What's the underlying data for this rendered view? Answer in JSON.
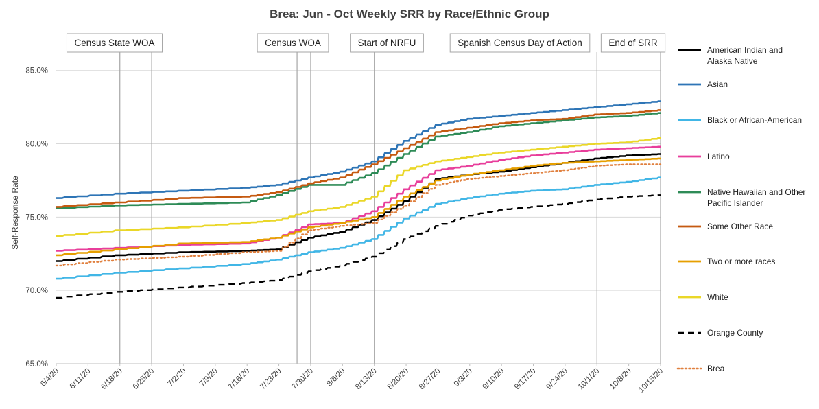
{
  "chart_data": {
    "type": "line",
    "title": "Brea: Jun - Oct Weekly SRR by Race/Ethnic Group",
    "xlabel": "",
    "ylabel": "Self-Response Rate",
    "ylim": [
      65,
      87
    ],
    "yticks": [
      "65.0%",
      "70.0%",
      "75.0%",
      "80.0%",
      "85.0%"
    ],
    "ytick_values": [
      65,
      70,
      75,
      80,
      85
    ],
    "x_start": "2020-06-04",
    "x_end": "2020-10-15",
    "x_ticks": [
      "6/4/20",
      "6/11/20",
      "6/18/20",
      "6/25/20",
      "7/2/20",
      "7/9/20",
      "7/16/20",
      "7/23/20",
      "7/30/20",
      "8/6/20",
      "8/13/20",
      "8/20/20",
      "8/27/20",
      "9/3/20",
      "9/10/20",
      "9/17/20",
      "9/24/20",
      "10/1/20",
      "10/8/20",
      "10/15/20"
    ],
    "events": [
      {
        "label": "Census State WOA",
        "start": "6/18/20",
        "end": "6/25/20"
      },
      {
        "label": "Census WOA",
        "start": "7/27/20",
        "end": "7/30/20"
      },
      {
        "label": "Start of NRFU",
        "start": "8/13/20",
        "end": "8/13/20"
      },
      {
        "label": "Spanish Census Day of Action",
        "start": "10/1/20",
        "end": "10/1/20"
      },
      {
        "label": "End of SRR",
        "start": "10/15/20",
        "end": "10/15/20"
      }
    ],
    "key_dates": [
      "6/4/20",
      "6/18/20",
      "7/2/20",
      "7/16/20",
      "7/23/20",
      "7/30/20",
      "8/6/20",
      "8/13/20",
      "8/20/20",
      "8/27/20",
      "9/3/20",
      "9/10/20",
      "9/17/20",
      "9/24/20",
      "10/1/20",
      "10/8/20",
      "10/15/20"
    ],
    "series": [
      {
        "name": "American Indian and Alaska Native",
        "color": "#000000",
        "dash": "solid",
        "values": [
          72.0,
          72.4,
          72.6,
          72.7,
          72.8,
          73.6,
          74.0,
          74.8,
          76.1,
          77.6,
          77.9,
          78.1,
          78.4,
          78.7,
          79.0,
          79.2,
          79.3
        ]
      },
      {
        "name": "Asian",
        "color": "#2e75b6",
        "dash": "solid",
        "values": [
          76.3,
          76.6,
          76.8,
          77.0,
          77.2,
          77.7,
          78.1,
          78.8,
          80.2,
          81.3,
          81.7,
          81.9,
          82.1,
          82.3,
          82.5,
          82.7,
          82.9
        ]
      },
      {
        "name": "Black or African-American",
        "color": "#41b6e6",
        "dash": "solid",
        "values": [
          70.8,
          71.2,
          71.5,
          71.8,
          72.1,
          72.6,
          72.9,
          73.5,
          74.9,
          75.9,
          76.3,
          76.6,
          76.8,
          76.9,
          77.2,
          77.4,
          77.7
        ]
      },
      {
        "name": "Latino",
        "color": "#e83e9b",
        "dash": "solid",
        "values": [
          72.7,
          72.9,
          73.1,
          73.2,
          73.6,
          74.5,
          74.6,
          75.4,
          76.9,
          78.2,
          78.5,
          78.9,
          79.2,
          79.4,
          79.6,
          79.7,
          79.8
        ]
      },
      {
        "name": "Native Hawaiian and Other Pacific Islander",
        "color": "#2e8b57",
        "dash": "solid",
        "values": [
          75.6,
          75.8,
          75.9,
          76.0,
          76.5,
          77.2,
          77.2,
          78.0,
          79.3,
          80.5,
          80.8,
          81.2,
          81.4,
          81.6,
          81.8,
          81.9,
          82.1
        ]
      },
      {
        "name": "Some Other Race",
        "color": "#c55a11",
        "dash": "solid",
        "values": [
          75.7,
          76.0,
          76.3,
          76.4,
          76.7,
          77.3,
          77.7,
          78.6,
          79.7,
          80.8,
          81.1,
          81.4,
          81.6,
          81.7,
          82.0,
          82.1,
          82.3
        ]
      },
      {
        "name": "Two or more races",
        "color": "#e69f00",
        "dash": "solid",
        "values": [
          72.4,
          72.8,
          73.2,
          73.3,
          73.6,
          74.3,
          74.6,
          75.0,
          76.4,
          77.5,
          77.9,
          78.2,
          78.5,
          78.7,
          78.8,
          78.9,
          79.0
        ]
      },
      {
        "name": "White",
        "color": "#ead728",
        "dash": "solid",
        "values": [
          73.7,
          74.1,
          74.3,
          74.6,
          74.8,
          75.4,
          75.7,
          76.4,
          78.2,
          78.8,
          79.1,
          79.4,
          79.6,
          79.8,
          80.0,
          80.1,
          80.4
        ]
      },
      {
        "name": "Orange County",
        "color": "#000000",
        "dash": "dashed",
        "values": [
          69.5,
          69.9,
          70.2,
          70.5,
          70.7,
          71.3,
          71.7,
          72.3,
          73.5,
          74.4,
          75.1,
          75.5,
          75.7,
          75.9,
          76.2,
          76.4,
          76.5
        ]
      },
      {
        "name": "Brea",
        "color": "#e0803f",
        "dash": "dotted",
        "values": [
          71.7,
          72.1,
          72.3,
          72.6,
          72.7,
          74.1,
          74.4,
          74.6,
          75.8,
          77.2,
          77.6,
          77.8,
          78.0,
          78.2,
          78.5,
          78.6,
          78.6
        ]
      }
    ]
  }
}
